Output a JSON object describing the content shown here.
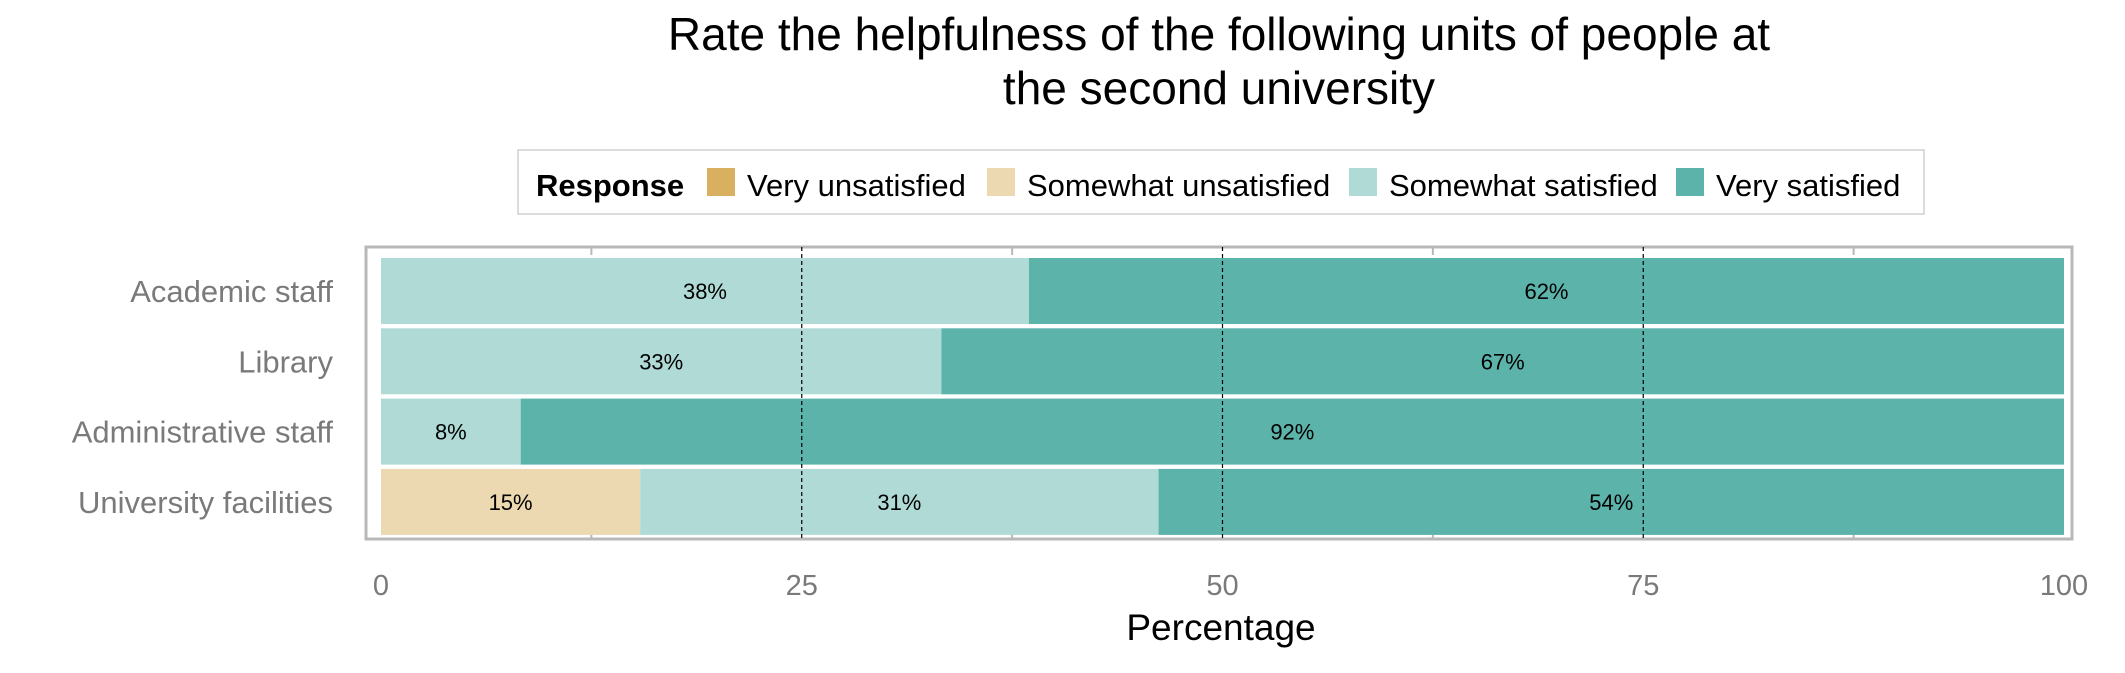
{
  "chart_data": {
    "type": "bar",
    "orientation": "horizontal",
    "stacked": true,
    "title_lines": [
      "Rate the helpfulness of the following units of people at",
      "the second university"
    ],
    "xlabel": "Percentage",
    "ylabel": "",
    "xlim": [
      0,
      100
    ],
    "x_ticks": [
      "0",
      "25",
      "50",
      "75",
      "100"
    ],
    "legend": {
      "title": "Response",
      "position": "top",
      "entries": [
        "Very unsatisfied",
        "Somewhat unsatisfied",
        "Somewhat satisfied",
        "Very satisfied"
      ]
    },
    "grid": "vertical dashed lines at major ticks",
    "categories": [
      "Academic staff",
      "Library",
      "Administrative staff",
      "University facilities"
    ],
    "series": [
      {
        "name": "Very unsatisfied",
        "color": "#d9b060",
        "values": [
          0,
          0,
          0,
          0
        ],
        "labels": [
          "",
          "",
          "",
          ""
        ]
      },
      {
        "name": "Somewhat unsatisfied",
        "color": "#ecd9b1",
        "values": [
          0,
          0,
          0,
          15.4
        ],
        "labels": [
          "",
          "",
          "",
          "15%"
        ]
      },
      {
        "name": "Somewhat satisfied",
        "color": "#afdad6",
        "values": [
          38.5,
          33.3,
          8.3,
          30.8
        ],
        "labels": [
          "38%",
          "33%",
          "8%",
          "31%"
        ]
      },
      {
        "name": "Very satisfied",
        "color": "#5cb3aa",
        "values": [
          61.5,
          66.7,
          91.7,
          53.8
        ],
        "labels": [
          "62%",
          "67%",
          "92%",
          "54%"
        ]
      }
    ]
  }
}
